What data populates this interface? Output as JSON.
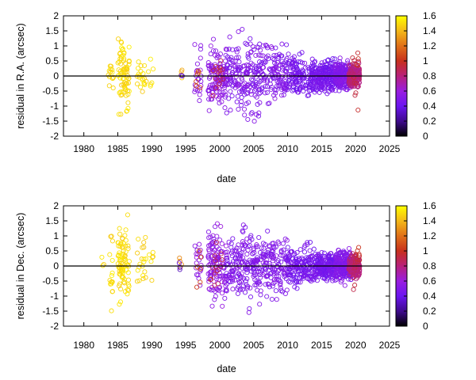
{
  "chart_data": [
    {
      "type": "scatter",
      "xlabel": "date",
      "ylabel": "residual in R.A. (arcsec)",
      "xlim": [
        1977,
        2025
      ],
      "ylim": [
        -2,
        2
      ],
      "x_ticks": [
        "1980",
        "1985",
        "1990",
        "1995",
        "2000",
        "2005",
        "2010",
        "2015",
        "2020",
        "2025"
      ],
      "y_ticks": [
        "2",
        "1.5",
        "1",
        "0.5",
        "0",
        "-0.5",
        "-1",
        "-1.5",
        "-2"
      ],
      "colorbar": {
        "range": [
          0,
          1.6
        ],
        "ticks": [
          "1.6",
          "1.4",
          "1.2",
          "1",
          "0.8",
          "0.6",
          "0.4",
          "0.2",
          "0"
        ]
      },
      "zero_line": 0,
      "grid": false,
      "clusters": [
        {
          "x": [
            1983.5,
            1984.5
          ],
          "y_spread": 0.7,
          "n": 14,
          "color_value": 1.5
        },
        {
          "x": [
            1985.0,
            1986.7
          ],
          "y_spread": 1.7,
          "n": 80,
          "color_value": 1.5
        },
        {
          "x": [
            1987.8,
            1989.2
          ],
          "y_spread": 1.0,
          "n": 20,
          "color_value": 1.5
        },
        {
          "x": [
            1989.5,
            1990.2
          ],
          "y_spread": 0.9,
          "n": 6,
          "color_value": 1.5
        },
        {
          "x": [
            1994.0,
            1994.5
          ],
          "y_spread": 0.45,
          "n": 4,
          "color_value": 1.4
        },
        {
          "x": [
            1994.0,
            1994.5
          ],
          "y_spread": 0.05,
          "n": 2,
          "color_value": 0.35
        },
        {
          "x": [
            1996.3,
            1997.3
          ],
          "y_spread": 1.6,
          "n": 22,
          "color_value": 0.55
        },
        {
          "x": [
            1996.5,
            1997.2
          ],
          "y_spread": 1.2,
          "n": 6,
          "color_value": 1.1
        },
        {
          "x": [
            1998.3,
            2001.0
          ],
          "y_spread": 1.4,
          "n": 120,
          "color_value": 0.55
        },
        {
          "x": [
            1998.5,
            2000.5
          ],
          "y_spread": 0.9,
          "n": 14,
          "color_value": 0.9
        },
        {
          "x": [
            2001.0,
            2006.0
          ],
          "y_spread": 1.8,
          "n": 180,
          "color_value": 0.5
        },
        {
          "x": [
            2006.0,
            2010.0
          ],
          "y_spread": 1.4,
          "n": 130,
          "color_value": 0.5
        },
        {
          "x": [
            2010.0,
            2014.0
          ],
          "y_spread": 0.9,
          "n": 160,
          "color_value": 0.45
        },
        {
          "x": [
            2014.0,
            2017.0
          ],
          "y_spread": 0.7,
          "n": 200,
          "color_value": 0.45
        },
        {
          "x": [
            2017.0,
            2019.5
          ],
          "y_spread": 0.65,
          "n": 260,
          "color_value": 0.5
        },
        {
          "x": [
            2019.0,
            2020.6
          ],
          "y_spread": 0.5,
          "n": 160,
          "color_value": 0.8
        },
        {
          "x": [
            2019.5,
            2020.6
          ],
          "y_spread": 1.6,
          "n": 14,
          "color_value": 0.95
        }
      ]
    },
    {
      "type": "scatter",
      "xlabel": "date",
      "ylabel": "residual in Dec. (arcsec)",
      "xlim": [
        1977,
        2025
      ],
      "ylim": [
        -2,
        2
      ],
      "x_ticks": [
        "1980",
        "1985",
        "1990",
        "1995",
        "2000",
        "2005",
        "2010",
        "2015",
        "2020",
        "2025"
      ],
      "y_ticks": [
        "2",
        "1.5",
        "1",
        "0.5",
        "0",
        "-0.5",
        "-1",
        "-1.5",
        "-2"
      ],
      "colorbar": {
        "range": [
          0,
          1.6
        ],
        "ticks": [
          "1.6",
          "1.4",
          "1.2",
          "1",
          "0.8",
          "0.6",
          "0.4",
          "0.2",
          "0"
        ]
      },
      "zero_line": 0,
      "grid": false,
      "clusters": [
        {
          "x": [
            1982.5,
            1983.2
          ],
          "y_spread": 0.7,
          "n": 3,
          "color_value": 1.5
        },
        {
          "x": [
            1983.8,
            1984.3
          ],
          "y_spread": 1.9,
          "n": 16,
          "color_value": 1.5
        },
        {
          "x": [
            1985.0,
            1986.7
          ],
          "y_spread": 1.8,
          "n": 85,
          "color_value": 1.5
        },
        {
          "x": [
            1987.8,
            1989.2
          ],
          "y_spread": 1.4,
          "n": 20,
          "color_value": 1.5
        },
        {
          "x": [
            1989.5,
            1990.2
          ],
          "y_spread": 1.7,
          "n": 6,
          "color_value": 1.5
        },
        {
          "x": [
            1994.0,
            1994.5
          ],
          "y_spread": 0.4,
          "n": 4,
          "color_value": 1.3
        },
        {
          "x": [
            1994.0,
            1994.5
          ],
          "y_spread": 0.3,
          "n": 3,
          "color_value": 0.35
        },
        {
          "x": [
            1996.3,
            1997.3
          ],
          "y_spread": 1.2,
          "n": 20,
          "color_value": 0.55
        },
        {
          "x": [
            1996.5,
            1997.2
          ],
          "y_spread": 1.0,
          "n": 6,
          "color_value": 1.1
        },
        {
          "x": [
            1998.3,
            2001.0
          ],
          "y_spread": 1.7,
          "n": 120,
          "color_value": 0.55
        },
        {
          "x": [
            1998.5,
            2000.5
          ],
          "y_spread": 1.0,
          "n": 14,
          "color_value": 0.9
        },
        {
          "x": [
            2001.0,
            2006.0
          ],
          "y_spread": 1.8,
          "n": 180,
          "color_value": 0.5
        },
        {
          "x": [
            2006.0,
            2010.0
          ],
          "y_spread": 1.5,
          "n": 130,
          "color_value": 0.5
        },
        {
          "x": [
            2010.0,
            2014.0
          ],
          "y_spread": 0.9,
          "n": 160,
          "color_value": 0.45
        },
        {
          "x": [
            2014.0,
            2017.0
          ],
          "y_spread": 0.7,
          "n": 200,
          "color_value": 0.45
        },
        {
          "x": [
            2017.0,
            2019.5
          ],
          "y_spread": 0.7,
          "n": 260,
          "color_value": 0.5
        },
        {
          "x": [
            2019.0,
            2020.6
          ],
          "y_spread": 0.5,
          "n": 160,
          "color_value": 0.8
        },
        {
          "x": [
            2019.5,
            2020.6
          ],
          "y_spread": 1.3,
          "n": 14,
          "color_value": 0.95
        }
      ]
    }
  ],
  "palette": {
    "0": "#000000",
    "0.2": "#3d0a8a",
    "0.4": "#6b15f0",
    "0.6": "#9a1ee0",
    "0.8": "#b8207a",
    "1": "#c8301c",
    "1.2": "#e07018",
    "1.4": "#f4b818",
    "1.6": "#ffff00"
  }
}
